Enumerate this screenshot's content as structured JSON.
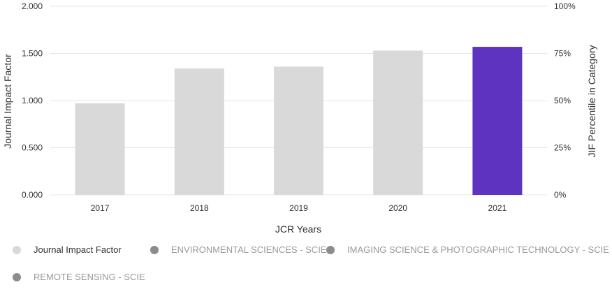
{
  "chart_data": {
    "type": "bar",
    "categories": [
      "2017",
      "2018",
      "2019",
      "2020",
      "2021"
    ],
    "series": [
      {
        "name": "Journal Impact Factor",
        "values": [
          0.97,
          1.34,
          1.36,
          1.53,
          1.57
        ]
      }
    ],
    "highlight_category": "2021",
    "xlabel": "JCR Years",
    "ylabel": "Journal Impact Factor",
    "y2label": "JIF Percentile in Category",
    "ylim": [
      0,
      2
    ],
    "y_ticks": [
      "0.000",
      "0.500",
      "1.000",
      "1.500",
      "2.000"
    ],
    "y2_ticks": [
      "0%",
      "25%",
      "50%",
      "75%",
      "100%"
    ],
    "grid": true,
    "colors": {
      "bar": "#d9d9d9",
      "highlight": "#5e33bf",
      "grid": "#e6e6e6"
    }
  },
  "legend": {
    "items": [
      {
        "label": "Journal Impact Factor",
        "color": "#d9d9d9",
        "active": true
      },
      {
        "label": "ENVIRONMENTAL SCIENCES - SCIE",
        "color": "#8c8c8c",
        "active": false
      },
      {
        "label": "IMAGING SCIENCE & PHOTOGRAPHIC TECHNOLOGY - SCIE",
        "color": "#8c8c8c",
        "active": false
      },
      {
        "label": "REMOTE SENSING - SCIE",
        "color": "#8c8c8c",
        "active": false
      }
    ]
  }
}
